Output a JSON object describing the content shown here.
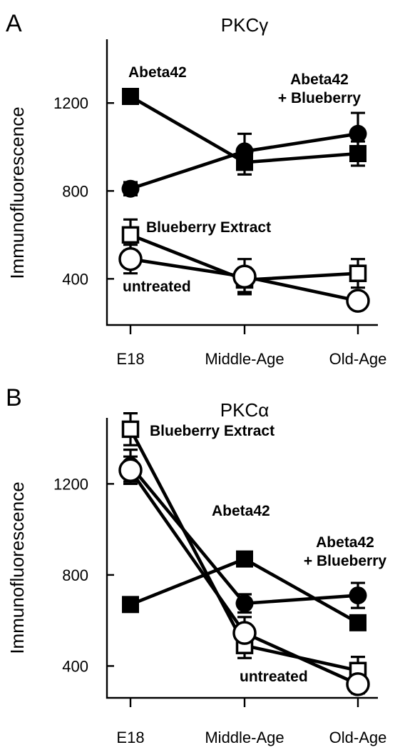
{
  "chart_data": [
    {
      "type": "line",
      "panel_letter": "A",
      "title": "PKCγ",
      "xlabel": "",
      "ylabel": "Immunofluorescence",
      "categories": [
        "E18",
        "Middle-Age",
        "Old-Age"
      ],
      "yticks": [
        400,
        800,
        1200
      ],
      "ylim": [
        190,
        1490
      ],
      "grid": false,
      "series": [
        {
          "name": "Abeta42",
          "marker": "filled-square",
          "values": [
            1230,
            930,
            970
          ],
          "errors": [
            25,
            55,
            55
          ]
        },
        {
          "name": "Abeta42 + Blueberry",
          "marker": "filled-circle",
          "values": [
            810,
            980,
            1060
          ],
          "errors": [
            30,
            80,
            95
          ]
        },
        {
          "name": "Blueberry Extract",
          "marker": "open-square",
          "values": [
            600,
            395,
            425
          ],
          "errors": [
            70,
            55,
            65
          ]
        },
        {
          "name": "untreated",
          "marker": "open-circle",
          "values": [
            490,
            410,
            300
          ],
          "errors": [
            65,
            80,
            30
          ]
        }
      ],
      "annotations": [
        {
          "text": "Abeta42",
          "lines": [
            "Abeta42"
          ]
        },
        {
          "text": "Abeta42 + Blueberry",
          "lines": [
            "Abeta42",
            "+ Blueberry"
          ]
        },
        {
          "text": "Blueberry Extract",
          "lines": [
            "Blueberry Extract"
          ]
        },
        {
          "text": "untreated",
          "lines": [
            "untreated"
          ]
        }
      ]
    },
    {
      "type": "line",
      "panel_letter": "B",
      "title": "PKCα",
      "xlabel": "",
      "ylabel": "Immunofluorescence",
      "categories": [
        "E18",
        "Middle-Age",
        "Old-Age"
      ],
      "yticks": [
        400,
        800,
        1200
      ],
      "ylim": [
        260,
        1490
      ],
      "grid": false,
      "series": [
        {
          "name": "Abeta42",
          "marker": "filled-square",
          "values": [
            670,
            870,
            590
          ],
          "errors": [
            20,
            30,
            30
          ]
        },
        {
          "name": "Abeta42 + Blueberry",
          "marker": "filled-circle",
          "values": [
            1280,
            675,
            710
          ],
          "errors": [
            70,
            40,
            55
          ]
        },
        {
          "name": "Blueberry Extract",
          "marker": "open-square",
          "values": [
            1440,
            490,
            380
          ],
          "errors": [
            70,
            55,
            60
          ]
        },
        {
          "name": "untreated",
          "marker": "open-circle",
          "values": [
            1260,
            545,
            320
          ],
          "errors": [
            60,
            70,
            40
          ]
        }
      ],
      "annotations": [
        {
          "text": "Blueberry Extract",
          "lines": [
            "Blueberry Extract"
          ]
        },
        {
          "text": "Abeta42",
          "lines": [
            "Abeta42"
          ]
        },
        {
          "text": "Abeta42 + Blueberry",
          "lines": [
            "Abeta42",
            "+ Blueberry"
          ]
        },
        {
          "text": "untreated",
          "lines": [
            "untreated"
          ]
        }
      ]
    }
  ]
}
